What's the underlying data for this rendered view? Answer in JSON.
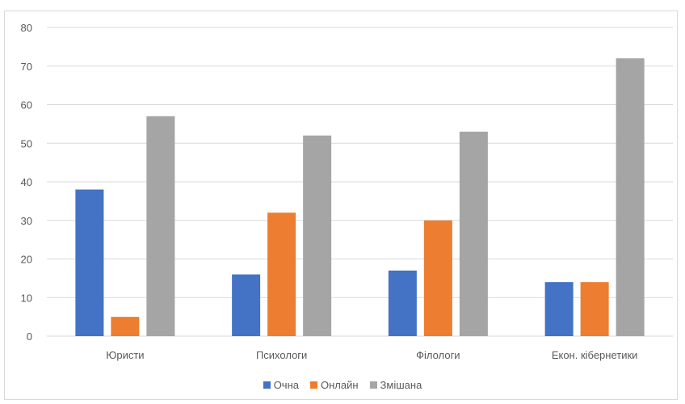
{
  "chart_data": {
    "type": "bar",
    "title": "",
    "xlabel": "",
    "ylabel": "",
    "categories": [
      "Юристи",
      "Психологи",
      "Філологи",
      "Екон. кібернетики"
    ],
    "series": [
      {
        "name": "Очна",
        "color": "#4472c4",
        "values": [
          38,
          16,
          17,
          14
        ]
      },
      {
        "name": "Онлайн",
        "color": "#ed7d31",
        "values": [
          5,
          32,
          30,
          14
        ]
      },
      {
        "name": "Змішана",
        "color": "#a5a5a5",
        "values": [
          57,
          52,
          53,
          72
        ]
      }
    ],
    "ylim": [
      0,
      80
    ],
    "yticks": [
      "0",
      "10",
      "20",
      "30",
      "40",
      "50",
      "60",
      "70",
      "80"
    ],
    "grid": true,
    "legend_position": "bottom"
  }
}
